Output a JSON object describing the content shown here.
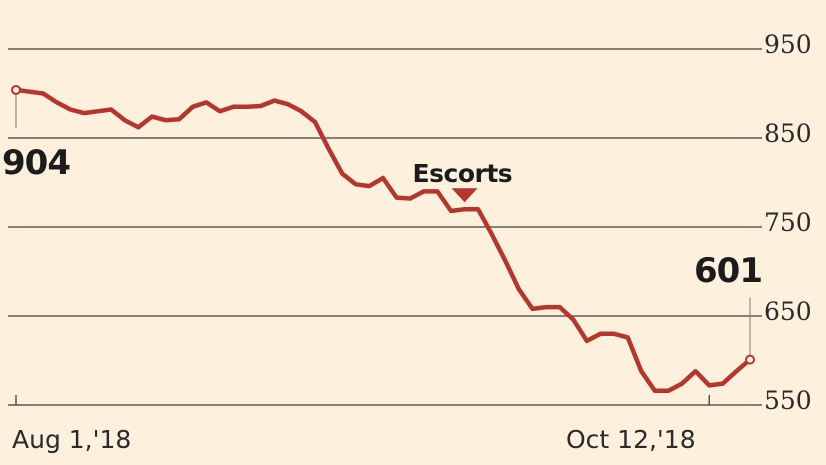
{
  "chart_data": {
    "type": "line",
    "title": "",
    "xlabel": "",
    "ylabel": "",
    "y_ticks": [
      950,
      850,
      750,
      650,
      550
    ],
    "ylim": [
      550,
      950
    ],
    "grid": true,
    "x_tick_labels": [
      "Aug 1,'18",
      "Oct 12,'18"
    ],
    "start_label": "904",
    "end_label": "601",
    "annotation": {
      "text": "Escorts",
      "marker": "down-triangle"
    },
    "series": [
      {
        "color": "#b5362e",
        "values": [
          904,
          902,
          900,
          890,
          882,
          878,
          880,
          882,
          870,
          862,
          874,
          870,
          871,
          885,
          890,
          880,
          885,
          885,
          886,
          892,
          888,
          880,
          868,
          838,
          810,
          798,
          796,
          805,
          783,
          782,
          790,
          790,
          768,
          770,
          770,
          742,
          712,
          680,
          658,
          660,
          660,
          646,
          622,
          630,
          630,
          626,
          588,
          566,
          566,
          574,
          588,
          572,
          574,
          588,
          601
        ]
      }
    ]
  }
}
